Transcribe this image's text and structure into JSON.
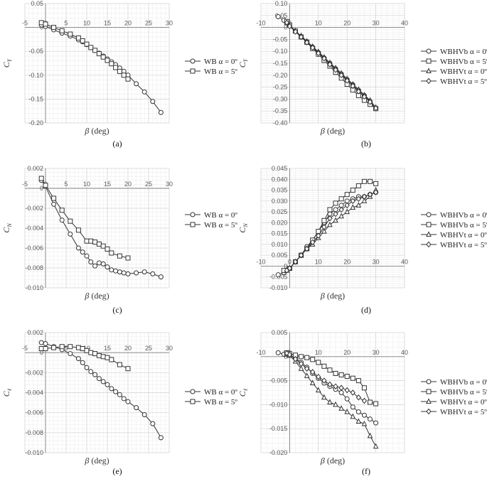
{
  "chart_data": [
    {
      "type": "line",
      "caption": "(a)",
      "xlabel": "β (deg)",
      "ylabel": "C_Y",
      "xlim": [
        -5,
        30
      ],
      "ylim": [
        -0.2,
        0.05
      ],
      "xticks": [
        -5,
        0,
        5,
        10,
        15,
        20,
        25,
        30
      ],
      "xtick_labels": [
        "-5",
        "0",
        "5",
        "10",
        "15",
        "20",
        "25",
        "30"
      ],
      "yticks": [
        -0.2,
        -0.15,
        -0.1,
        -0.05,
        0,
        0.05
      ],
      "ytick_labels": [
        "-0.20",
        "-0.15",
        "-0.10",
        "-0.05",
        "0",
        "0.05"
      ],
      "grid": true,
      "legend_position": "right",
      "series": [
        {
          "name": "WB α = 0º",
          "marker": "circle",
          "x": [
            -1,
            0,
            2,
            4,
            6,
            8,
            9,
            10,
            11,
            12,
            13,
            14,
            15,
            16,
            17,
            18,
            19,
            20,
            22,
            24,
            26,
            28
          ],
          "y": [
            0.005,
            0.002,
            -0.005,
            -0.012,
            -0.018,
            -0.026,
            -0.03,
            -0.036,
            -0.042,
            -0.048,
            -0.054,
            -0.06,
            -0.066,
            -0.072,
            -0.078,
            -0.085,
            -0.092,
            -0.1,
            -0.118,
            -0.135,
            -0.155,
            -0.178
          ]
        },
        {
          "name": "WB α = 5º",
          "marker": "square",
          "x": [
            -1,
            0,
            2,
            4,
            6,
            8,
            9,
            10,
            11,
            12,
            13,
            14,
            15,
            16,
            17,
            18,
            19,
            20
          ],
          "y": [
            0.01,
            0.007,
            0.0,
            -0.007,
            -0.014,
            -0.022,
            -0.028,
            -0.035,
            -0.042,
            -0.048,
            -0.055,
            -0.062,
            -0.069,
            -0.076,
            -0.084,
            -0.092,
            -0.1,
            -0.108
          ]
        }
      ]
    },
    {
      "type": "line",
      "caption": "(b)",
      "xlabel": "β (deg)",
      "ylabel": "C_Y",
      "xlim": [
        -10,
        40
      ],
      "ylim": [
        -0.4,
        0.1
      ],
      "xticks": [
        -10,
        0,
        10,
        20,
        30,
        40
      ],
      "xtick_labels": [
        "-10",
        "0",
        "10",
        "20",
        "30",
        "40"
      ],
      "yticks": [
        -0.4,
        -0.35,
        -0.3,
        -0.25,
        -0.2,
        -0.15,
        -0.1,
        -0.05,
        0,
        0.05,
        0.1
      ],
      "ytick_labels": [
        "-0.40",
        "-0.35",
        "-0.30",
        "-0.25",
        "-0.20",
        "-0.15",
        "-0.10",
        "-0.05",
        "0",
        "0.05",
        "0.10"
      ],
      "grid": true,
      "legend_position": "right",
      "series": [
        {
          "name": "WBHVb α = 0º",
          "marker": "circle",
          "x": [
            -4,
            -2,
            0,
            2,
            4,
            6,
            8,
            10,
            12,
            14,
            16,
            18,
            20,
            22,
            24,
            26,
            28,
            30
          ],
          "y": [
            0.045,
            0.03,
            0.008,
            -0.015,
            -0.038,
            -0.06,
            -0.083,
            -0.105,
            -0.128,
            -0.15,
            -0.173,
            -0.195,
            -0.218,
            -0.24,
            -0.263,
            -0.285,
            -0.31,
            -0.34
          ]
        },
        {
          "name": "WBHVb α = 5º",
          "marker": "square",
          "x": [
            -1,
            0,
            2,
            4,
            6,
            8,
            10,
            12,
            14,
            16,
            18,
            20,
            22,
            24,
            26,
            28,
            30
          ],
          "y": [
            0.025,
            0.01,
            -0.015,
            -0.04,
            -0.062,
            -0.088,
            -0.112,
            -0.138,
            -0.162,
            -0.188,
            -0.212,
            -0.238,
            -0.262,
            -0.285,
            -0.305,
            -0.322,
            -0.34
          ]
        },
        {
          "name": "WBHVt α = 0º",
          "marker": "triangle",
          "x": [
            -1,
            0,
            2,
            4,
            6,
            8,
            10,
            12,
            14,
            16,
            18,
            20,
            22,
            24,
            26,
            28,
            30
          ],
          "y": [
            0.02,
            0.008,
            -0.015,
            -0.035,
            -0.058,
            -0.08,
            -0.102,
            -0.125,
            -0.148,
            -0.17,
            -0.192,
            -0.215,
            -0.238,
            -0.26,
            -0.283,
            -0.305,
            -0.335
          ]
        },
        {
          "name": "WBHVt α = 5º",
          "marker": "diamond",
          "x": [
            -1,
            0,
            2,
            4,
            6,
            8,
            10,
            12,
            14,
            16,
            18,
            20,
            22,
            24,
            26,
            28,
            30
          ],
          "y": [
            0.02,
            0.005,
            -0.018,
            -0.04,
            -0.063,
            -0.085,
            -0.108,
            -0.13,
            -0.155,
            -0.178,
            -0.2,
            -0.223,
            -0.245,
            -0.268,
            -0.29,
            -0.312,
            -0.338
          ]
        }
      ]
    },
    {
      "type": "line",
      "caption": "(c)",
      "xlabel": "β (deg)",
      "ylabel": "C_N",
      "xlim": [
        -5,
        30
      ],
      "ylim": [
        -0.01,
        0.002
      ],
      "xticks": [
        -5,
        0,
        5,
        10,
        15,
        20,
        25,
        30
      ],
      "xtick_labels": [
        "-5",
        "0",
        "5",
        "10",
        "15",
        "20",
        "25",
        "30"
      ],
      "yticks": [
        -0.01,
        -0.008,
        -0.006,
        -0.004,
        -0.002,
        0,
        0.002
      ],
      "ytick_labels": [
        "-0.010",
        "-0.008",
        "-0.006",
        "-0.004",
        "-0.002",
        "0",
        "0.002"
      ],
      "grid": true,
      "legend_position": "right",
      "series": [
        {
          "name": "WB α = 0º",
          "marker": "circle",
          "x": [
            -1,
            0,
            2,
            4,
            6,
            8,
            9,
            10,
            11,
            12,
            13,
            14,
            15,
            16,
            17,
            18,
            19,
            20,
            22,
            24,
            26,
            28
          ],
          "y": [
            0.0008,
            0.0002,
            -0.0016,
            -0.0032,
            -0.0046,
            -0.006,
            -0.0064,
            -0.0068,
            -0.0074,
            -0.0078,
            -0.0075,
            -0.0076,
            -0.0079,
            -0.0082,
            -0.0083,
            -0.0084,
            -0.0085,
            -0.0086,
            -0.0085,
            -0.0084,
            -0.0086,
            -0.0089
          ]
        },
        {
          "name": "WB α = 5º",
          "marker": "square",
          "x": [
            -1,
            0,
            2,
            4,
            6,
            8,
            10,
            11,
            12,
            13,
            14,
            15,
            16,
            18,
            20
          ],
          "y": [
            0.001,
            0.0003,
            -0.001,
            -0.0022,
            -0.0033,
            -0.0042,
            -0.0053,
            -0.0053,
            -0.0054,
            -0.0056,
            -0.0058,
            -0.0061,
            -0.0065,
            -0.0068,
            -0.007
          ]
        }
      ]
    },
    {
      "type": "line",
      "caption": "(d)",
      "xlabel": "β (deg)",
      "ylabel": "C_N",
      "xlim": [
        -10,
        40
      ],
      "ylim": [
        -0.01,
        0.045
      ],
      "xticks": [
        -10,
        0,
        10,
        20,
        30,
        40
      ],
      "xtick_labels": [
        "-10",
        "0",
        "10",
        "20",
        "30",
        "40"
      ],
      "yticks": [
        -0.01,
        -0.005,
        0,
        0.005,
        0.01,
        0.015,
        0.02,
        0.025,
        0.03,
        0.035,
        0.04,
        0.045
      ],
      "ytick_labels": [
        "-0.010",
        "-0.005",
        "0",
        "0.005",
        "0.010",
        "0.015",
        "0.020",
        "0.025",
        "0.030",
        "0.035",
        "0.040",
        "0.045"
      ],
      "grid": true,
      "legend_position": "right",
      "series": [
        {
          "name": "WBHVb α = 0º",
          "marker": "circle",
          "x": [
            -4,
            -2,
            0,
            2,
            4,
            6,
            8,
            10,
            12,
            14,
            16,
            18,
            20,
            22,
            24,
            26,
            28,
            30
          ],
          "y": [
            -0.004,
            -0.003,
            -0.001,
            0.002,
            0.005,
            0.009,
            0.012,
            0.016,
            0.02,
            0.024,
            0.026,
            0.028,
            0.03,
            0.031,
            0.032,
            0.032,
            0.033,
            0.034
          ]
        },
        {
          "name": "WBHVb α = 5º",
          "marker": "square",
          "x": [
            -2,
            0,
            2,
            4,
            6,
            8,
            10,
            12,
            14,
            16,
            18,
            20,
            22,
            24,
            26,
            28,
            30
          ],
          "y": [
            -0.002,
            -0.001,
            0.002,
            0.005,
            0.008,
            0.012,
            0.016,
            0.021,
            0.026,
            0.029,
            0.031,
            0.033,
            0.035,
            0.037,
            0.039,
            0.039,
            0.038
          ]
        },
        {
          "name": "WBHVt α = 0º",
          "marker": "triangle",
          "x": [
            -1,
            0,
            2,
            4,
            6,
            8,
            10,
            12,
            14,
            16,
            18,
            20,
            22,
            24,
            26,
            28,
            30
          ],
          "y": [
            -0.002,
            -0.001,
            0.002,
            0.005,
            0.008,
            0.01,
            0.013,
            0.016,
            0.019,
            0.021,
            0.023,
            0.025,
            0.027,
            0.028,
            0.03,
            0.032,
            0.035
          ]
        },
        {
          "name": "WBHVt α = 5º",
          "marker": "diamond",
          "x": [
            -1,
            0,
            2,
            4,
            6,
            8,
            10,
            12,
            14,
            16,
            18,
            20,
            22,
            24,
            26,
            28,
            30
          ],
          "y": [
            -0.002,
            -0.001,
            0.002,
            0.005,
            0.008,
            0.011,
            0.014,
            0.018,
            0.022,
            0.024,
            0.026,
            0.028,
            0.03,
            0.031,
            0.032,
            0.033,
            0.034
          ]
        }
      ]
    },
    {
      "type": "line",
      "caption": "(e)",
      "xlabel": "β (deg)",
      "ylabel": "C_ℓ",
      "xlim": [
        -5,
        30
      ],
      "ylim": [
        -0.01,
        0.002
      ],
      "xticks": [
        -5,
        0,
        5,
        10,
        15,
        20,
        25,
        30
      ],
      "xtick_labels": [
        "-5",
        "0",
        "5",
        "10",
        "15",
        "20",
        "25",
        "30"
      ],
      "yticks": [
        -0.01,
        -0.008,
        -0.006,
        -0.004,
        -0.002,
        0,
        0.002
      ],
      "ytick_labels": [
        "-0.010",
        "-0.008",
        "-0.006",
        "-0.004",
        "-0.002",
        "0",
        "0.002"
      ],
      "grid": true,
      "legend_position": "right",
      "series": [
        {
          "name": "WB α = 0º",
          "marker": "circle",
          "x": [
            -1,
            0,
            2,
            4,
            6,
            8,
            9,
            10,
            11,
            12,
            13,
            14,
            15,
            16,
            17,
            18,
            19,
            20,
            22,
            24,
            26,
            28
          ],
          "y": [
            0.001,
            0.0009,
            0.0006,
            0.0003,
            -0.0001,
            -0.0006,
            -0.001,
            -0.0015,
            -0.0019,
            -0.0022,
            -0.0026,
            -0.0029,
            -0.0032,
            -0.0036,
            -0.0039,
            -0.0042,
            -0.0046,
            -0.0049,
            -0.0055,
            -0.0062,
            -0.0071,
            -0.0085
          ]
        },
        {
          "name": "WB α = 5º",
          "marker": "square",
          "x": [
            -1,
            0,
            2,
            4,
            6,
            8,
            9,
            10,
            11,
            12,
            13,
            14,
            15,
            16,
            18,
            20
          ],
          "y": [
            0.0004,
            0.0004,
            0.0005,
            0.0006,
            0.0006,
            0.0005,
            0.0004,
            0.0002,
            0.0,
            -0.0001,
            -0.0003,
            -0.0004,
            -0.0005,
            -0.0007,
            -0.0012,
            -0.0016
          ]
        }
      ]
    },
    {
      "type": "line",
      "caption": "(f)",
      "xlabel": "β (deg)",
      "ylabel": "C_ℓ",
      "xlim": [
        -10,
        40
      ],
      "ylim": [
        -0.02,
        0.005
      ],
      "xticks": [
        -10,
        0,
        10,
        20,
        30,
        40
      ],
      "xtick_labels": [
        "-10",
        "0",
        "10",
        "20",
        "30",
        "40"
      ],
      "yticks": [
        -0.02,
        -0.015,
        -0.01,
        -0.005,
        0,
        0.005
      ],
      "ytick_labels": [
        "-0.020",
        "-0.015",
        "-0.010",
        "-0.005",
        "0",
        "0.005"
      ],
      "grid": true,
      "legend_position": "right",
      "series": [
        {
          "name": "WBHVb α = 0º",
          "marker": "circle",
          "x": [
            -4,
            -2,
            0,
            2,
            4,
            6,
            8,
            10,
            12,
            14,
            16,
            18,
            20,
            22,
            24,
            26,
            28,
            30
          ],
          "y": [
            0.0008,
            0.0005,
            0.0003,
            -0.0003,
            -0.0012,
            -0.0022,
            -0.0035,
            -0.0045,
            -0.0055,
            -0.0062,
            -0.0068,
            -0.0075,
            -0.0088,
            -0.0105,
            -0.0115,
            -0.0122,
            -0.013,
            -0.0138
          ]
        },
        {
          "name": "WBHVb α = 5º",
          "marker": "square",
          "x": [
            -1,
            0,
            2,
            4,
            6,
            8,
            10,
            12,
            14,
            16,
            18,
            20,
            22,
            24,
            26,
            28,
            30
          ],
          "y": [
            0.0008,
            0.0006,
            0.0003,
            0.0,
            -0.0002,
            -0.0006,
            -0.0012,
            -0.002,
            -0.0028,
            -0.0035,
            -0.0038,
            -0.0041,
            -0.0045,
            -0.005,
            -0.0065,
            -0.0095,
            -0.0098
          ]
        },
        {
          "name": "WBHVt α = 0º",
          "marker": "triangle",
          "x": [
            -1,
            0,
            2,
            4,
            6,
            8,
            10,
            12,
            14,
            16,
            18,
            20,
            22,
            24,
            26,
            28,
            30
          ],
          "y": [
            0.0005,
            0.0002,
            -0.001,
            -0.0025,
            -0.004,
            -0.0055,
            -0.007,
            -0.0085,
            -0.0095,
            -0.01,
            -0.0108,
            -0.0115,
            -0.0125,
            -0.0135,
            -0.014,
            -0.0165,
            -0.0187
          ]
        },
        {
          "name": "WBHVt α = 5º",
          "marker": "diamond",
          "x": [
            -1,
            0,
            2,
            4,
            6,
            8,
            10,
            12,
            14,
            16,
            18,
            20,
            22,
            24,
            26
          ],
          "y": [
            0.0007,
            0.0004,
            -0.0005,
            -0.0015,
            -0.0025,
            -0.0032,
            -0.0042,
            -0.005,
            -0.0058,
            -0.0062,
            -0.0065,
            -0.007,
            -0.0075,
            -0.0085,
            -0.0092
          ]
        }
      ]
    }
  ]
}
